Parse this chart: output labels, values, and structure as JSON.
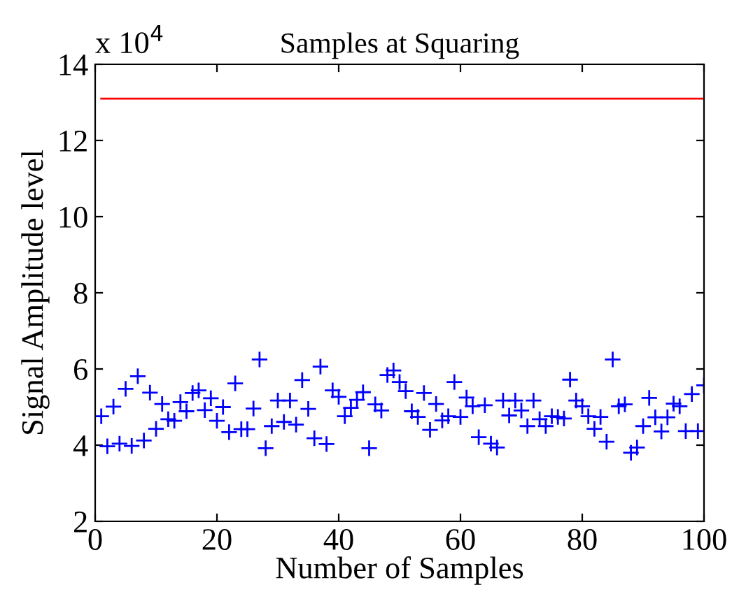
{
  "chart_data": {
    "type": "scatter",
    "title": "Samples at Squaring",
    "xlabel": "Number of Samples",
    "ylabel": "Signal Amplitude level",
    "annotations": [
      "x 10$^{4}$"
    ],
    "xlim": [
      0,
      100
    ],
    "xticks": [
      0,
      20,
      40,
      60,
      80,
      100
    ],
    "ylim": [
      2,
      14
    ],
    "yticks": [
      2,
      4,
      6,
      8,
      10,
      12,
      14
    ],
    "grid": false,
    "legend": false,
    "series": [
      {
        "color": "#0000ff",
        "marker": "cross",
        "x": [
          1,
          2,
          3,
          4,
          5,
          6,
          7,
          8,
          9,
          10,
          11,
          12,
          13,
          14,
          15,
          16,
          17,
          18,
          19,
          20,
          21,
          22,
          23,
          24,
          25,
          26,
          27,
          28,
          29,
          30,
          31,
          32,
          33,
          34,
          35,
          36,
          37,
          38,
          39,
          40,
          41,
          42,
          43,
          44,
          45,
          46,
          47,
          48,
          49,
          50,
          51,
          52,
          53,
          54,
          55,
          56,
          57,
          58,
          59,
          60,
          61,
          62,
          63,
          64,
          65,
          66,
          67,
          68,
          69,
          70,
          71,
          72,
          73,
          74,
          75,
          76,
          77,
          78,
          79,
          80,
          81,
          82,
          83,
          84,
          85,
          86,
          87,
          88,
          89,
          90,
          91,
          92,
          93,
          94,
          95,
          96,
          97,
          98,
          99,
          100
        ],
        "values": [
          4.76,
          3.97,
          5.01,
          4.04,
          5.48,
          3.98,
          5.81,
          4.12,
          5.38,
          4.43,
          5.08,
          4.68,
          4.64,
          5.13,
          4.89,
          5.37,
          5.44,
          4.92,
          5.23,
          4.64,
          5.0,
          4.34,
          5.62,
          4.42,
          4.42,
          4.96,
          6.25,
          3.92,
          4.5,
          5.17,
          4.61,
          5.17,
          4.54,
          5.71,
          4.95,
          4.18,
          6.06,
          4.03,
          5.44,
          5.27,
          4.76,
          4.98,
          5.19,
          5.39,
          3.92,
          5.07,
          4.91,
          5.84,
          5.96,
          5.66,
          5.42,
          4.89,
          4.74,
          5.37,
          4.4,
          5.08,
          4.65,
          4.76,
          5.66,
          4.74,
          5.25,
          5.02,
          4.21,
          5.05,
          4.04,
          3.94,
          5.17,
          4.78,
          5.17,
          4.91,
          4.5,
          5.17,
          4.68,
          4.5,
          4.76,
          4.74,
          4.7,
          5.72,
          5.17,
          5.02,
          4.76,
          4.43,
          4.74,
          4.09,
          6.25,
          5.02,
          5.07,
          3.8,
          3.94,
          4.5,
          5.24,
          4.73,
          4.36,
          4.73,
          5.09,
          5.02,
          4.37,
          5.34,
          4.37,
          5.57
        ]
      },
      {
        "type": "line",
        "color": "#ff0000",
        "marker": "none",
        "line_style": "solid",
        "x": [
          1,
          100
        ],
        "values": [
          13.1,
          13.1
        ]
      }
    ]
  }
}
